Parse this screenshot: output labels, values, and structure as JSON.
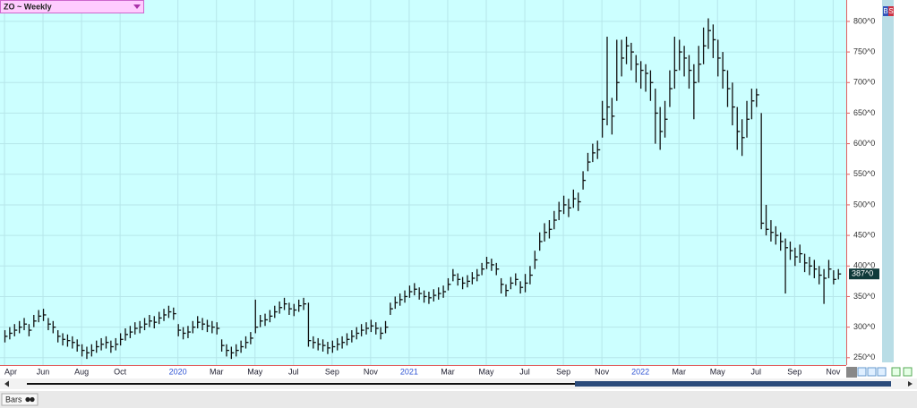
{
  "chart_data": {
    "type": "ohlc",
    "title": "ZO ~ Weekly",
    "footer_tab": "Bars",
    "badges": [
      "B",
      "S"
    ],
    "color": "#111111",
    "grid": true,
    "ylim": [
      238,
      835
    ],
    "yticks": [
      {
        "value": 250,
        "label": "250^0"
      },
      {
        "value": 300,
        "label": "300^0"
      },
      {
        "value": 350,
        "label": "350^0"
      },
      {
        "value": 400,
        "label": "400^0"
      },
      {
        "value": 450,
        "label": "450^0"
      },
      {
        "value": 500,
        "label": "500^0"
      },
      {
        "value": 550,
        "label": "550^0"
      },
      {
        "value": 600,
        "label": "600^0"
      },
      {
        "value": 650,
        "label": "650^0"
      },
      {
        "value": 700,
        "label": "700^0"
      },
      {
        "value": 750,
        "label": "750^0"
      },
      {
        "value": 800,
        "label": "800^0"
      }
    ],
    "last_value_label": "387^0",
    "categories": [
      "Apr",
      null,
      null,
      null,
      null,
      null,
      null,
      null,
      "Jun",
      null,
      null,
      null,
      null,
      null,
      null,
      null,
      "Aug",
      null,
      null,
      null,
      null,
      null,
      null,
      null,
      "Oct",
      null,
      null,
      null,
      null,
      null,
      null,
      null,
      null,
      null,
      null,
      null,
      "2020",
      null,
      null,
      null,
      null,
      null,
      null,
      null,
      "Mar",
      null,
      null,
      null,
      null,
      null,
      null,
      null,
      "May",
      null,
      null,
      null,
      null,
      null,
      null,
      null,
      "Jul",
      null,
      null,
      null,
      null,
      null,
      null,
      null,
      "Sep",
      null,
      null,
      null,
      null,
      null,
      null,
      null,
      "Nov",
      null,
      null,
      null,
      null,
      null,
      null,
      null,
      "2021",
      null,
      null,
      null,
      null,
      null,
      null,
      null,
      "Mar",
      null,
      null,
      null,
      null,
      null,
      null,
      null,
      "May",
      null,
      null,
      null,
      null,
      null,
      null,
      null,
      "Jul",
      null,
      null,
      null,
      null,
      null,
      null,
      null,
      "Sep",
      null,
      null,
      null,
      null,
      null,
      null,
      null,
      "Nov",
      null,
      null,
      null,
      null,
      null,
      null,
      null,
      "2022",
      null,
      null,
      null,
      null,
      null,
      null,
      null,
      "Mar",
      null,
      null,
      null,
      null,
      null,
      null,
      null,
      "May",
      null,
      null,
      null,
      null,
      null,
      null,
      null,
      "Jul",
      null,
      null,
      null,
      null,
      null,
      null,
      null,
      "Sep",
      null,
      null,
      null,
      null,
      null,
      null,
      null,
      "Nov",
      null
    ],
    "high": [
      295,
      300,
      305,
      310,
      315,
      305,
      320,
      328,
      330,
      315,
      310,
      295,
      290,
      288,
      285,
      280,
      272,
      268,
      272,
      278,
      282,
      285,
      278,
      282,
      290,
      298,
      302,
      308,
      310,
      315,
      320,
      318,
      325,
      330,
      335,
      332,
      305,
      300,
      302,
      310,
      318,
      315,
      312,
      310,
      308,
      280,
      272,
      268,
      272,
      278,
      285,
      292,
      345,
      320,
      322,
      328,
      335,
      342,
      348,
      340,
      338,
      345,
      348,
      340,
      285,
      282,
      280,
      276,
      278,
      282,
      285,
      290,
      295,
      300,
      305,
      308,
      312,
      308,
      300,
      310,
      340,
      350,
      355,
      360,
      368,
      372,
      365,
      360,
      358,
      362,
      365,
      368,
      380,
      395,
      388,
      382,
      385,
      390,
      395,
      405,
      415,
      412,
      405,
      380,
      370,
      382,
      388,
      375,
      387,
      400,
      425,
      455,
      470,
      475,
      490,
      505,
      515,
      510,
      525,
      520,
      555,
      585,
      600,
      605,
      670,
      775,
      675,
      770,
      770,
      775,
      765,
      745,
      735,
      730,
      720,
      690,
      660,
      670,
      720,
      775,
      770,
      760,
      745,
      730,
      760,
      790,
      805,
      795,
      770,
      750,
      720,
      700,
      660,
      640,
      670,
      690,
      690,
      650,
      500,
      475,
      465,
      455,
      445,
      440,
      430,
      435,
      420,
      415,
      410,
      400,
      395,
      410,
      393,
      395
    ],
    "low": [
      275,
      280,
      285,
      290,
      295,
      285,
      300,
      308,
      310,
      295,
      290,
      275,
      270,
      268,
      265,
      260,
      252,
      248,
      252,
      258,
      262,
      265,
      258,
      262,
      270,
      278,
      282,
      288,
      290,
      295,
      300,
      298,
      305,
      310,
      315,
      312,
      285,
      280,
      282,
      290,
      298,
      295,
      292,
      290,
      288,
      260,
      252,
      248,
      252,
      258,
      265,
      272,
      290,
      300,
      302,
      308,
      315,
      322,
      328,
      320,
      318,
      325,
      328,
      268,
      265,
      262,
      260,
      256,
      258,
      262,
      265,
      270,
      275,
      280,
      285,
      288,
      292,
      288,
      280,
      290,
      320,
      330,
      335,
      340,
      348,
      352,
      345,
      340,
      338,
      342,
      345,
      348,
      360,
      375,
      368,
      362,
      365,
      370,
      375,
      385,
      395,
      392,
      385,
      355,
      350,
      362,
      368,
      355,
      357,
      370,
      395,
      425,
      440,
      445,
      460,
      475,
      485,
      480,
      495,
      490,
      525,
      555,
      570,
      575,
      610,
      630,
      615,
      670,
      710,
      730,
      720,
      700,
      690,
      685,
      670,
      600,
      590,
      610,
      660,
      690,
      720,
      710,
      690,
      640,
      700,
      730,
      755,
      740,
      710,
      690,
      660,
      630,
      590,
      580,
      610,
      640,
      660,
      460,
      450,
      440,
      435,
      425,
      355,
      410,
      400,
      405,
      390,
      385,
      380,
      370,
      338,
      380,
      370,
      378
    ],
    "close": [
      285,
      290,
      295,
      300,
      305,
      295,
      310,
      318,
      320,
      305,
      300,
      285,
      280,
      278,
      275,
      270,
      262,
      258,
      262,
      268,
      272,
      275,
      268,
      272,
      280,
      288,
      292,
      298,
      300,
      305,
      310,
      308,
      315,
      320,
      325,
      322,
      295,
      290,
      292,
      300,
      308,
      305,
      302,
      300,
      298,
      270,
      262,
      258,
      262,
      268,
      275,
      282,
      300,
      310,
      312,
      318,
      325,
      332,
      338,
      330,
      328,
      335,
      338,
      278,
      275,
      272,
      270,
      266,
      268,
      272,
      275,
      280,
      285,
      290,
      295,
      298,
      302,
      298,
      290,
      300,
      330,
      340,
      345,
      350,
      358,
      362,
      355,
      350,
      348,
      352,
      355,
      358,
      370,
      385,
      378,
      372,
      375,
      380,
      385,
      395,
      405,
      402,
      395,
      370,
      360,
      372,
      378,
      365,
      372,
      385,
      410,
      440,
      455,
      460,
      475,
      490,
      500,
      495,
      510,
      505,
      540,
      570,
      585,
      590,
      640,
      660,
      645,
      700,
      740,
      760,
      750,
      730,
      720,
      715,
      700,
      650,
      620,
      640,
      690,
      720,
      750,
      740,
      720,
      700,
      730,
      760,
      785,
      770,
      740,
      720,
      690,
      660,
      620,
      610,
      640,
      670,
      680,
      470,
      460,
      455,
      450,
      440,
      430,
      425,
      415,
      420,
      405,
      400,
      395,
      385,
      380,
      395,
      378,
      387
    ]
  }
}
